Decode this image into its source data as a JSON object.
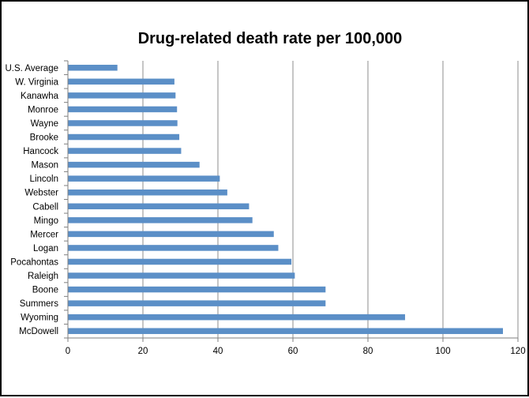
{
  "chart_data": {
    "type": "bar",
    "orientation": "horizontal",
    "title": "Drug-related death rate per 100,000",
    "xlabel": "",
    "ylabel": "",
    "categories": [
      "U.S. Average",
      "W. Virginia",
      "Kanawha",
      "Monroe",
      "Wayne",
      "Brooke",
      "Hancock",
      "Mason",
      "Lincoln",
      "Webster",
      "Cabell",
      "Mingo",
      "Mercer",
      "Logan",
      "Pocahontas",
      "Raleigh",
      "Boone",
      "Summers",
      "Wyoming",
      "McDowell"
    ],
    "values": [
      13.2,
      28.4,
      28.7,
      29.1,
      29.2,
      29.7,
      30.2,
      35.1,
      40.5,
      42.5,
      48.3,
      49.2,
      54.9,
      56.1,
      59.6,
      60.5,
      68.7,
      68.7,
      89.9,
      116.0
    ],
    "xlim": [
      0,
      120
    ],
    "xticks": [
      "0",
      "20",
      "40",
      "60",
      "80",
      "100",
      "120"
    ],
    "grid": "vertical",
    "legend": "none",
    "bar_color": "#5b8fc7",
    "gridline_color": "#8c8c8c",
    "axis_color": "#7f7f7f"
  }
}
